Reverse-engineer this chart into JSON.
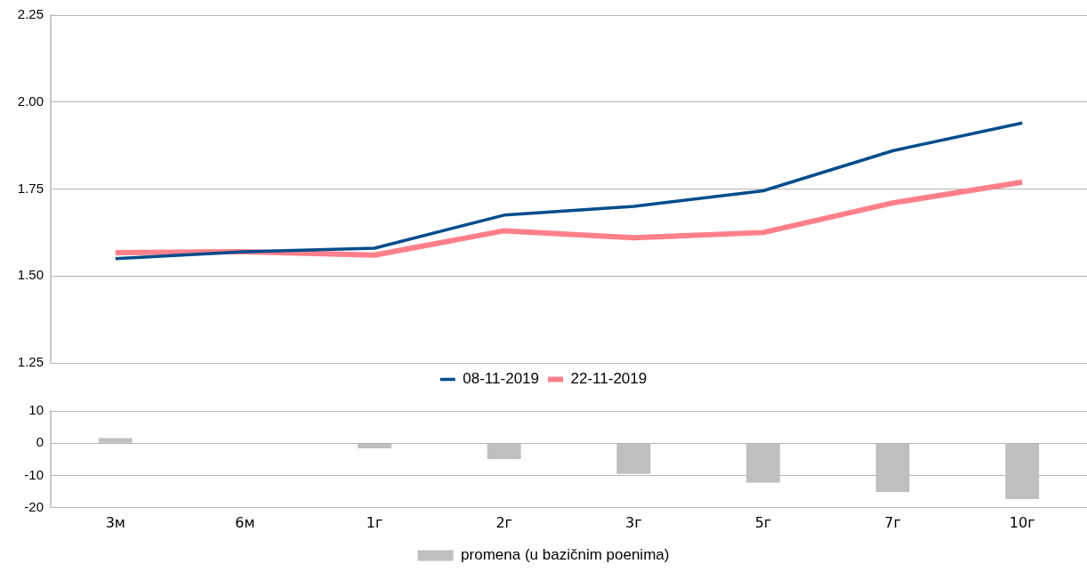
{
  "chart_data": [
    {
      "type": "line",
      "categories": [
        null,
        null,
        null,
        null,
        null,
        null,
        null,
        null
      ],
      "tick_labels": "y",
      "grid": "y",
      "legend": "bottom",
      "marker": "none",
      "ylim": [
        1.25,
        2.25
      ],
      "yticks": [
        {
          "value": 1.25,
          "label": "1.25"
        },
        {
          "value": 1.5,
          "label": "1.50"
        },
        {
          "value": 1.75,
          "label": "1.75"
        },
        {
          "value": 2,
          "label": "2.00"
        },
        {
          "value": 2.25,
          "label": "2.25"
        }
      ],
      "series": [
        {
          "name": "08-11-2019",
          "color": "#004c8c",
          "values": [
            1.55,
            1.57,
            1.58,
            1.675,
            1.7,
            1.745,
            1.86,
            1.94
          ]
        },
        {
          "name": "22-11-2019",
          "color": "#ff7f8a",
          "values": [
            1.567,
            1.57,
            1.56,
            1.63,
            1.61,
            1.625,
            1.71,
            1.77
          ]
        }
      ]
    },
    {
      "type": "bar",
      "categories": [
        "3м",
        "6м",
        "1г",
        "2г",
        "3г",
        "5г",
        "7г",
        "10г"
      ],
      "grid": "y",
      "legend": "bottom",
      "ylim": [
        -20,
        10
      ],
      "yticks": [
        -20,
        -10,
        0,
        10
      ],
      "series": [
        {
          "name": "promena (u bazičnim poenima)",
          "color": "#bfbfbf",
          "values": [
            1.6,
            0,
            -1.6,
            -4.9,
            -9.5,
            -12.2,
            -15.1,
            -17.3
          ]
        }
      ]
    }
  ]
}
